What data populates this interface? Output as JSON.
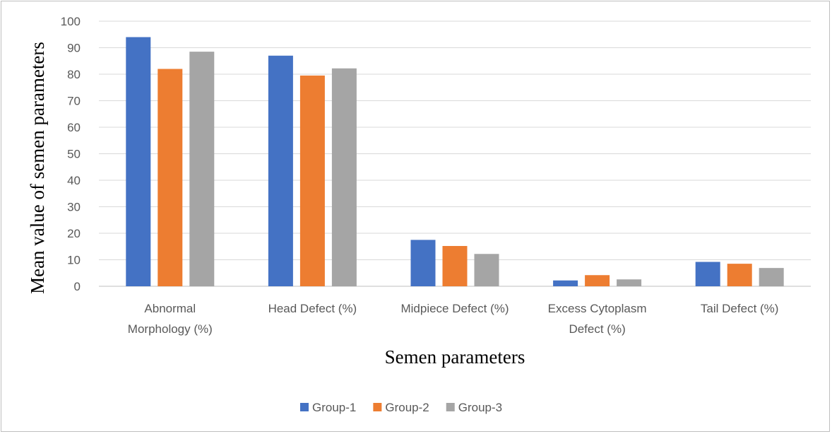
{
  "chart_data": {
    "type": "bar",
    "title": "",
    "xlabel": "Semen parameters",
    "ylabel": "Mean value of semen parameters",
    "ylim": [
      0,
      100
    ],
    "yticks": [
      0,
      10,
      20,
      30,
      40,
      50,
      60,
      70,
      80,
      90,
      100
    ],
    "grid": true,
    "legend_position": "bottom",
    "categories": [
      [
        "Abnormal",
        "Morphology (%)"
      ],
      [
        "Head Defect (%)"
      ],
      [
        "Midpiece Defect (%)"
      ],
      [
        "Excess Cytoplasm",
        "Defect (%)"
      ],
      [
        "Tail Defect (%)"
      ]
    ],
    "series": [
      {
        "name": "Group-1",
        "color": "#4472c4",
        "values": [
          94,
          87,
          17.5,
          2.2,
          9.2
        ]
      },
      {
        "name": "Group-2",
        "color": "#ed7d31",
        "values": [
          82,
          79.5,
          15.2,
          4.2,
          8.5
        ]
      },
      {
        "name": "Group-3",
        "color": "#a5a5a5",
        "values": [
          88.5,
          82.2,
          12.2,
          2.6,
          6.9
        ]
      }
    ]
  }
}
